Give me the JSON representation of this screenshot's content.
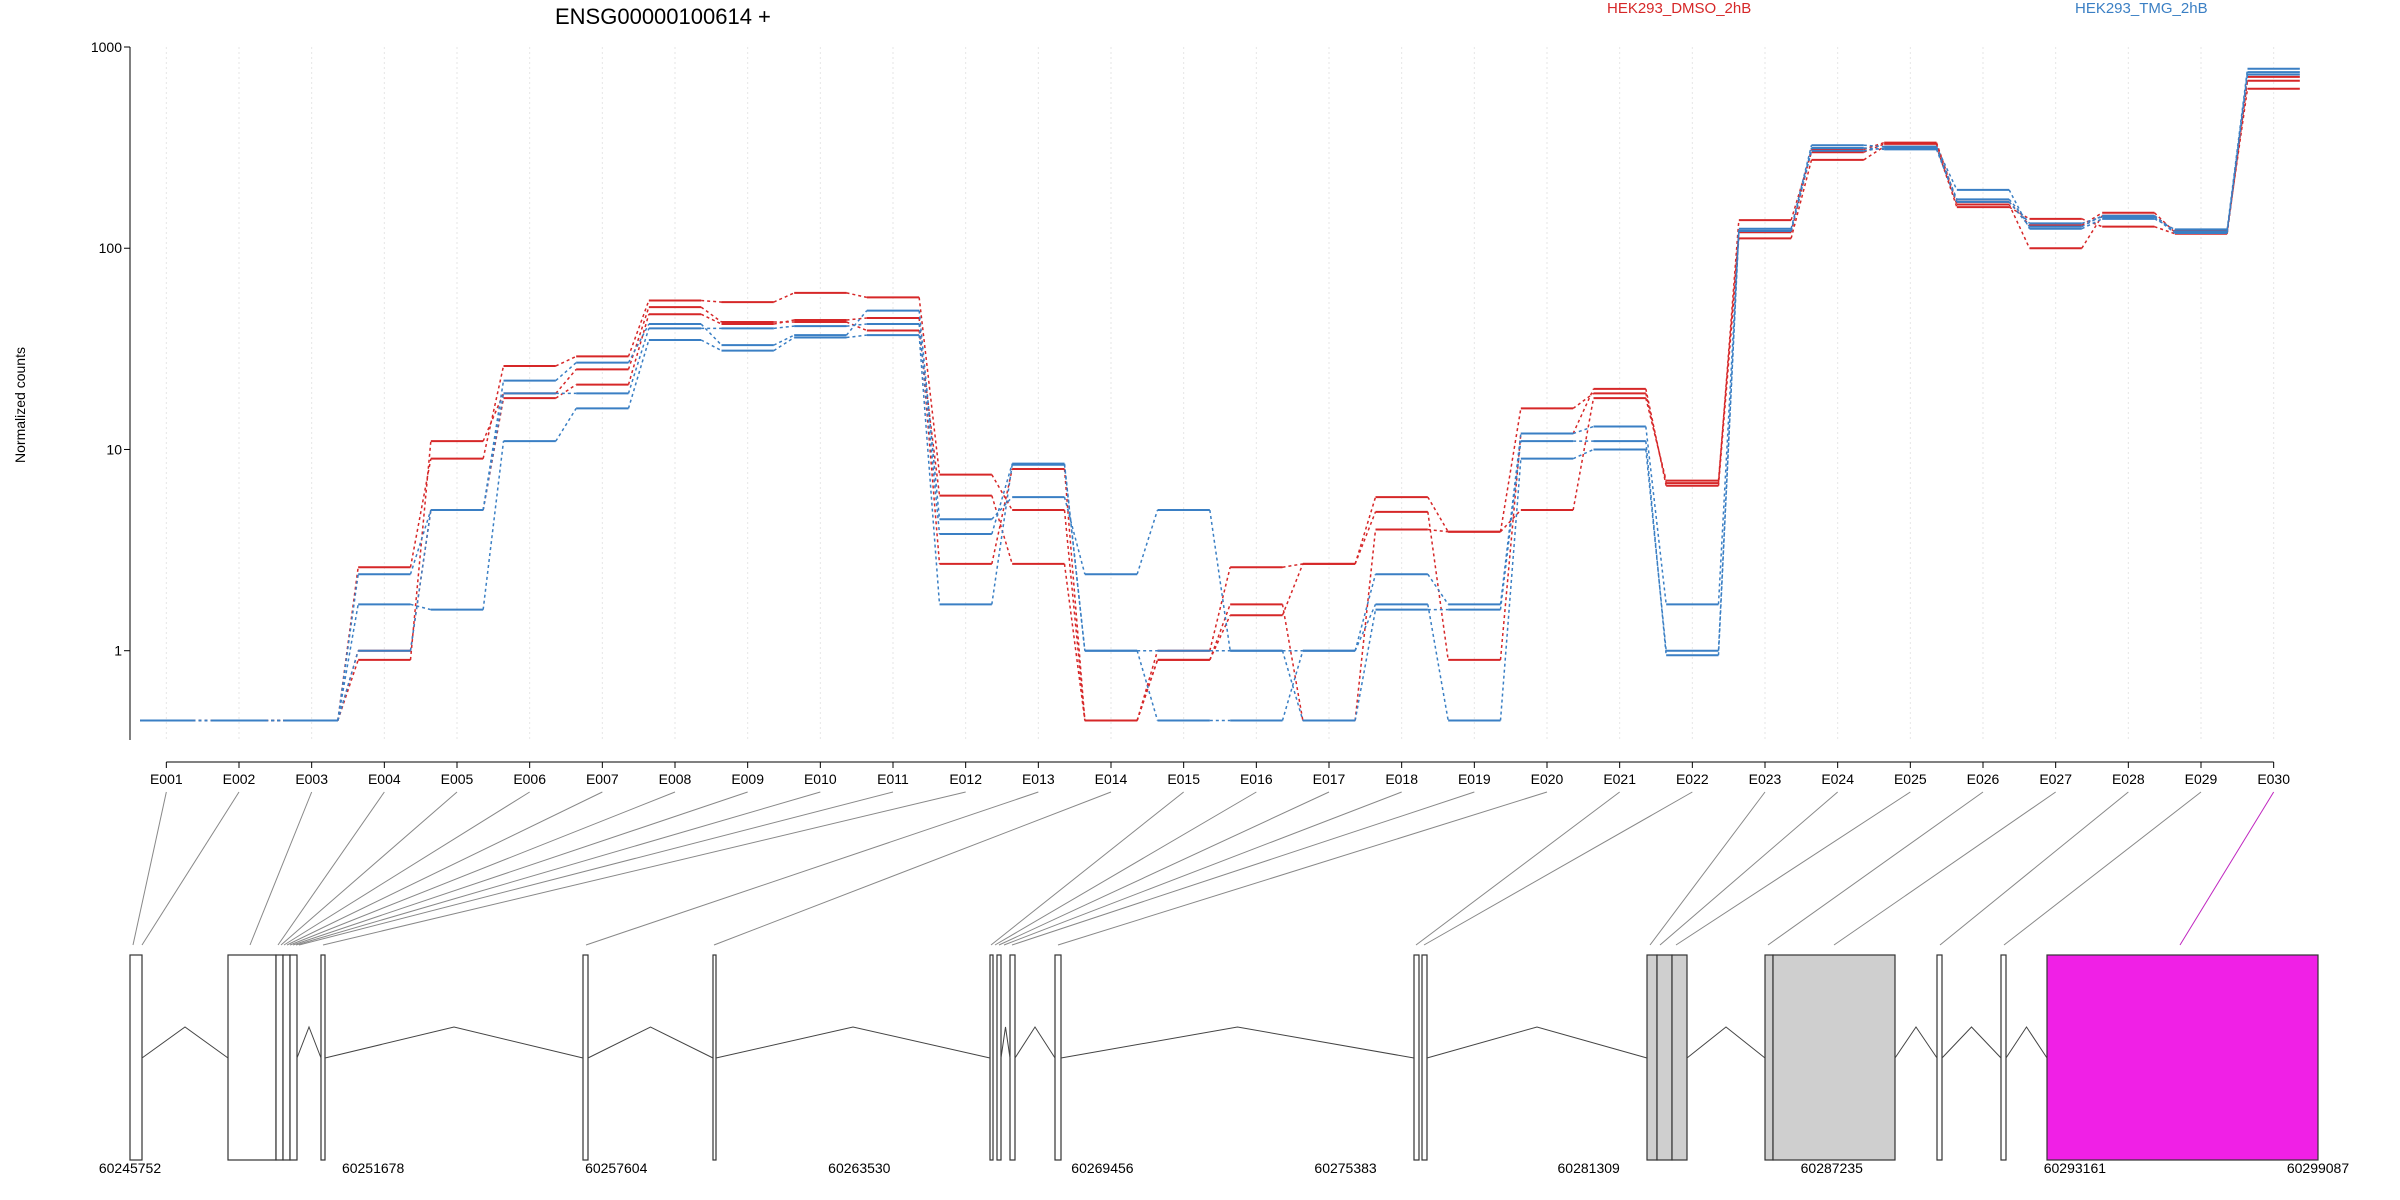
{
  "chart_data": {
    "type": "line",
    "title": "ENSG00000100614 +",
    "ylabel": "Normalized counts",
    "yscale": "log",
    "ylim": [
      0.36,
      1000
    ],
    "yticks": [
      {
        "value": 1,
        "label": "1"
      },
      {
        "value": 10,
        "label": "10"
      },
      {
        "value": 100,
        "label": "100"
      },
      {
        "value": 1000,
        "label": "1000"
      }
    ],
    "zero_floor": 0.45,
    "categories": [
      "E001",
      "E002",
      "E003",
      "E004",
      "E005",
      "E006",
      "E007",
      "E008",
      "E009",
      "E010",
      "E011",
      "E012",
      "E013",
      "E014",
      "E015",
      "E016",
      "E017",
      "E018",
      "E019",
      "E020",
      "E021",
      "E022",
      "E023",
      "E024",
      "E025",
      "E026",
      "E027",
      "E028",
      "E029",
      "E030"
    ],
    "legend": [
      {
        "label": "HEK293_DMSO_2hB",
        "color": "#d62728"
      },
      {
        "label": "HEK293_TMG_2hB",
        "color": "#3a7fc4"
      }
    ],
    "series": [
      {
        "group": "HEK293_DMSO_2hB",
        "color": "#d62728",
        "values": [
          0.45,
          0.45,
          0.45,
          2.6,
          9.0,
          26,
          29,
          55,
          54,
          60,
          57,
          7.5,
          5.0,
          0.45,
          1.0,
          2.6,
          2.7,
          5.8,
          3.9,
          16,
          19,
          6.8,
          138,
          300,
          330,
          165,
          100,
          145,
          122,
          620
        ]
      },
      {
        "group": "HEK293_DMSO_2hB",
        "color": "#d62728",
        "values": [
          0.45,
          0.45,
          0.45,
          0.9,
          11,
          19,
          25,
          51,
          43,
          43,
          39,
          5.9,
          2.7,
          0.45,
          0.9,
          1.5,
          2.7,
          4.9,
          0.9,
          12,
          20,
          6.6,
          112,
          275,
          320,
          160,
          140,
          128,
          118,
          680
        ]
      },
      {
        "group": "HEK293_DMSO_2hB",
        "color": "#d62728",
        "values": [
          0.45,
          0.45,
          0.45,
          1.0,
          5.0,
          18,
          21,
          47,
          42,
          44,
          45,
          2.7,
          8.0,
          0.45,
          0.9,
          1.7,
          0.45,
          4.0,
          3.9,
          5.0,
          18,
          7.0,
          120,
          310,
          335,
          170,
          130,
          150,
          120,
          710
        ]
      },
      {
        "group": "HEK293_TMG_2hB",
        "color": "#3a7fc4",
        "values": [
          0.45,
          0.45,
          0.45,
          2.4,
          5.0,
          22,
          27,
          42,
          33,
          37,
          49,
          4.5,
          5.8,
          2.4,
          5.0,
          1.0,
          1.0,
          2.4,
          1.7,
          12,
          13,
          1.7,
          125,
          325,
          320,
          195,
          125,
          140,
          124,
          780
        ]
      },
      {
        "group": "HEK293_TMG_2hB",
        "color": "#3a7fc4",
        "values": [
          0.45,
          0.45,
          0.45,
          1.7,
          1.6,
          11,
          16,
          35,
          31,
          36,
          37,
          1.7,
          8.4,
          1.0,
          0.45,
          0.45,
          1.0,
          1.7,
          0.45,
          9.0,
          10,
          1.0,
          122,
          315,
          310,
          170,
          128,
          145,
          121,
          750
        ]
      },
      {
        "group": "HEK293_TMG_2hB",
        "color": "#3a7fc4",
        "values": [
          0.45,
          0.45,
          0.45,
          1.0,
          5.0,
          19,
          19,
          40,
          40,
          41,
          42,
          3.8,
          8.5,
          1.0,
          1.0,
          1.0,
          0.45,
          1.6,
          1.6,
          11,
          11,
          0.95,
          122,
          305,
          315,
          175,
          133,
          143,
          119,
          730
        ]
      }
    ],
    "genomic_ticks": [
      "60245752",
      "60251678",
      "60257604",
      "60263530",
      "60269456",
      "60275383",
      "60281309",
      "60287235",
      "60293161",
      "60299087"
    ]
  }
}
